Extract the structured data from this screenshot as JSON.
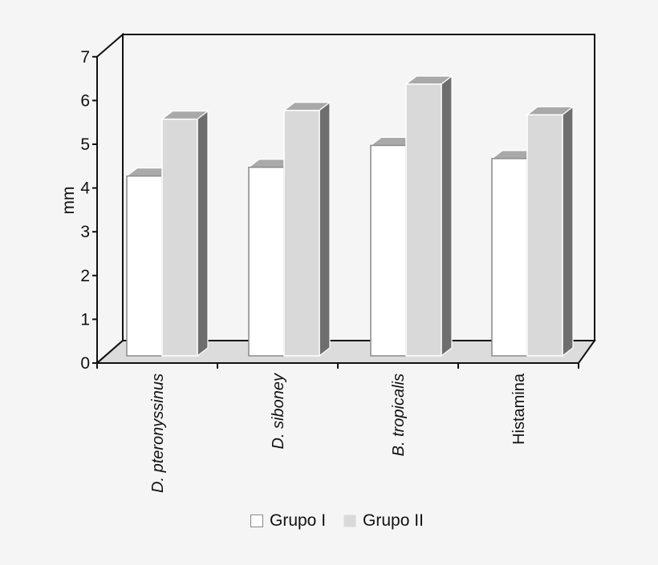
{
  "chart_data": {
    "type": "bar",
    "style": "3d-clustered-column",
    "title": "",
    "xlabel": "",
    "ylabel": "mm",
    "ylim": [
      0,
      7
    ],
    "yticks": [
      0,
      1,
      2,
      3,
      4,
      5,
      6,
      7
    ],
    "grid": false,
    "legend_position": "bottom",
    "categories": [
      "D. pteronyssinus",
      "D. siboney",
      "B. tropicalis",
      "Histamina"
    ],
    "categories_italic": [
      true,
      true,
      true,
      false
    ],
    "series": [
      {
        "name": "Grupo I",
        "values": [
          4.2,
          4.4,
          4.9,
          4.6
        ],
        "color": "#ffffff"
      },
      {
        "name": "Grupo II",
        "values": [
          5.5,
          5.7,
          6.3,
          5.6
        ],
        "color": "#d9d9d9"
      }
    ]
  },
  "colors": {
    "background": "#f5f5f5",
    "wall": "#f5f5f5",
    "floor": "#dcdcdc",
    "bar_top": "#a9a9a9",
    "bar_side": "#6e6e6e",
    "axis": "#111111"
  },
  "legend": {
    "items": [
      {
        "label": "Grupo I",
        "color": "#ffffff"
      },
      {
        "label": "Grupo II",
        "color": "#d9d9d9"
      }
    ]
  }
}
